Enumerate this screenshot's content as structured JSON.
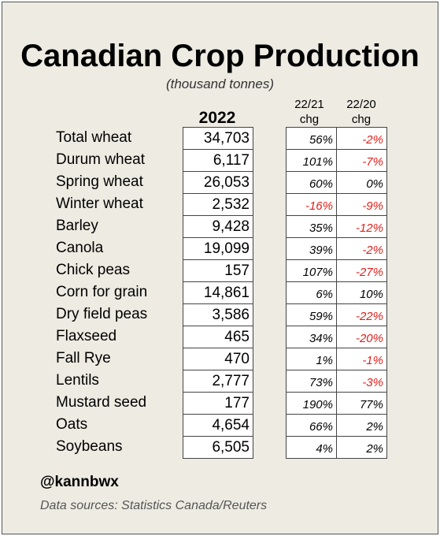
{
  "title": "Canadian Crop Production",
  "subtitle": "(thousand tonnes)",
  "chart_data": {
    "type": "table",
    "title": "Canadian Crop Production",
    "subtitle": "(thousand tonnes)",
    "columns": [
      "2022",
      "22/21 chg",
      "22/20 chg"
    ],
    "column_headers": [
      {
        "line1": "2022",
        "line2": ""
      },
      {
        "line1": "22/21",
        "line2": "chg"
      },
      {
        "line1": "22/20",
        "line2": "chg"
      }
    ],
    "rows": [
      {
        "crop": "Total wheat",
        "value": "34,703",
        "chg_21": "56%",
        "chg_20": "-2%"
      },
      {
        "crop": "Durum wheat",
        "value": "6,117",
        "chg_21": "101%",
        "chg_20": "-7%"
      },
      {
        "crop": "Spring wheat",
        "value": "26,053",
        "chg_21": "60%",
        "chg_20": "0%"
      },
      {
        "crop": "Winter wheat",
        "value": "2,532",
        "chg_21": "-16%",
        "chg_20": "-9%"
      },
      {
        "crop": "Barley",
        "value": "9,428",
        "chg_21": "35%",
        "chg_20": "-12%"
      },
      {
        "crop": "Canola",
        "value": "19,099",
        "chg_21": "39%",
        "chg_20": "-2%"
      },
      {
        "crop": "Chick peas",
        "value": "157",
        "chg_21": "107%",
        "chg_20": "-27%"
      },
      {
        "crop": "Corn for grain",
        "value": "14,861",
        "chg_21": "6%",
        "chg_20": "10%"
      },
      {
        "crop": "Dry field peas",
        "value": "3,586",
        "chg_21": "59%",
        "chg_20": "-22%"
      },
      {
        "crop": "Flaxseed",
        "value": "465",
        "chg_21": "34%",
        "chg_20": "-20%"
      },
      {
        "crop": "Fall Rye",
        "value": "470",
        "chg_21": "1%",
        "chg_20": "-1%"
      },
      {
        "crop": "Lentils",
        "value": "2,777",
        "chg_21": "73%",
        "chg_20": "-3%"
      },
      {
        "crop": "Mustard seed",
        "value": "177",
        "chg_21": "190%",
        "chg_20": "77%"
      },
      {
        "crop": "Oats",
        "value": "4,654",
        "chg_21": "66%",
        "chg_20": "2%"
      },
      {
        "crop": "Soybeans",
        "value": "6,505",
        "chg_21": "4%",
        "chg_20": "2%"
      }
    ],
    "colors": {
      "negative": "#e0201a",
      "positive": "#000000",
      "background": "#edebe2"
    }
  },
  "footer": {
    "handle": "@kannbwx",
    "source": "Data sources: Statistics Canada/Reuters"
  }
}
